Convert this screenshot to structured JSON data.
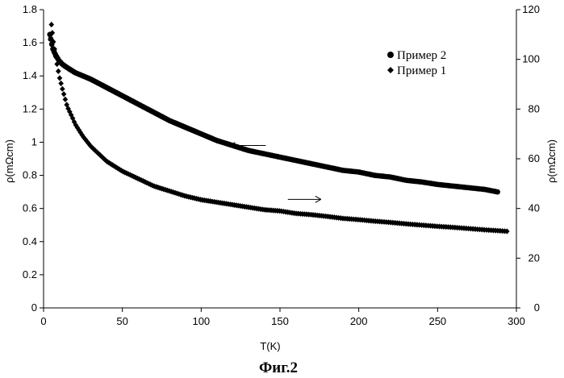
{
  "chart_data": {
    "type": "scatter",
    "title": "",
    "xlabel": "T(K)",
    "ylabel": "ρ(mΩcm)",
    "y2label": "ρ(mΩcm)",
    "xlim": [
      0,
      300
    ],
    "ylim": [
      0,
      1.8
    ],
    "y2lim": [
      0,
      120
    ],
    "xticks": [
      "0",
      "50",
      "100",
      "150",
      "200",
      "250",
      "300"
    ],
    "yticks": [
      "0",
      "0.2",
      "0.4",
      "0.6",
      "0.8",
      "1",
      "1.2",
      "1.4",
      "1.6",
      "1.8"
    ],
    "y2ticks": [
      "0",
      "20",
      "40",
      "60",
      "80",
      "100",
      "120"
    ],
    "grid": false,
    "legend_position": "top-right",
    "series": [
      {
        "name": "Пример 2",
        "marker": "circle",
        "axis": "left",
        "x": [
          4,
          5,
          6,
          8,
          10,
          12,
          15,
          20,
          25,
          30,
          40,
          50,
          60,
          70,
          80,
          90,
          100,
          110,
          120,
          130,
          140,
          150,
          160,
          170,
          180,
          190,
          200,
          210,
          220,
          230,
          240,
          250,
          260,
          270,
          280,
          288
        ],
        "y": [
          1.65,
          1.6,
          1.56,
          1.52,
          1.49,
          1.47,
          1.45,
          1.42,
          1.4,
          1.38,
          1.33,
          1.28,
          1.23,
          1.18,
          1.13,
          1.09,
          1.05,
          1.01,
          0.98,
          0.95,
          0.93,
          0.91,
          0.89,
          0.87,
          0.85,
          0.83,
          0.82,
          0.8,
          0.79,
          0.77,
          0.76,
          0.745,
          0.735,
          0.725,
          0.715,
          0.7
        ]
      },
      {
        "name": "Пример 1",
        "marker": "diamond",
        "axis": "right",
        "x": [
          5,
          6,
          8,
          10,
          12,
          15,
          18,
          20,
          25,
          30,
          35,
          40,
          50,
          60,
          70,
          80,
          90,
          100,
          110,
          120,
          130,
          140,
          150,
          160,
          170,
          180,
          190,
          200,
          210,
          220,
          230,
          240,
          250,
          260,
          270,
          280,
          290,
          294
        ],
        "y": [
          114,
          108,
          100,
          93,
          88,
          81,
          77,
          74,
          69,
          65,
          62,
          59,
          55,
          52,
          49,
          47,
          45,
          43.5,
          42.5,
          41.5,
          40.5,
          39.5,
          39,
          38,
          37.5,
          36.8,
          36,
          35.5,
          34.9,
          34.4,
          33.8,
          33.3,
          32.8,
          32.4,
          31.9,
          31.4,
          31,
          30.8
        ]
      }
    ],
    "annotations": [
      {
        "type": "arrow",
        "direction": "left",
        "points_to": "left",
        "x_from": 141,
        "x_to": 118,
        "y": 0.98
      },
      {
        "type": "arrow",
        "direction": "right",
        "points_to": "right",
        "x_from": 155,
        "x_to": 176,
        "y": 0.655
      }
    ]
  },
  "caption": "Фиг.2"
}
